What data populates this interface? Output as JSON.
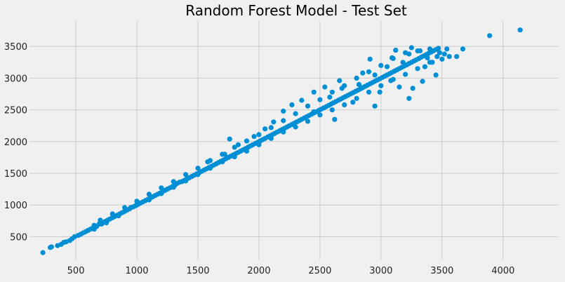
{
  "chart_data": {
    "type": "scatter",
    "title": "Random Forest Model - Test Set",
    "xlabel": "",
    "ylabel": "",
    "xlim": [
      120,
      4450
    ],
    "ylim": [
      140,
      3900
    ],
    "xticks": [
      500,
      1000,
      1500,
      2000,
      2500,
      3000,
      3500,
      4000
    ],
    "yticks": [
      500,
      1000,
      1500,
      2000,
      2500,
      3000,
      3500
    ],
    "grid": true,
    "legend": "none",
    "colors": {
      "points": "#008fd5",
      "background": "#f0f0f0",
      "grid": "#cbcbcb"
    },
    "points": [
      [
        230,
        250
      ],
      [
        290,
        330
      ],
      [
        300,
        340
      ],
      [
        350,
        360
      ],
      [
        380,
        380
      ],
      [
        400,
        410
      ],
      [
        420,
        420
      ],
      [
        450,
        440
      ],
      [
        470,
        470
      ],
      [
        490,
        500
      ],
      [
        520,
        520
      ],
      [
        540,
        540
      ],
      [
        560,
        560
      ],
      [
        580,
        580
      ],
      [
        600,
        600
      ],
      [
        620,
        620
      ],
      [
        640,
        640
      ],
      [
        650,
        680
      ],
      [
        670,
        660
      ],
      [
        690,
        700
      ],
      [
        710,
        700
      ],
      [
        720,
        720
      ],
      [
        740,
        740
      ],
      [
        760,
        760
      ],
      [
        780,
        780
      ],
      [
        800,
        800
      ],
      [
        820,
        820
      ],
      [
        840,
        840
      ],
      [
        860,
        860
      ],
      [
        880,
        880
      ],
      [
        900,
        900
      ],
      [
        920,
        920
      ],
      [
        940,
        940
      ],
      [
        950,
        960
      ],
      [
        970,
        970
      ],
      [
        990,
        990
      ],
      [
        1010,
        1010
      ],
      [
        1030,
        1030
      ],
      [
        1050,
        1050
      ],
      [
        1070,
        1070
      ],
      [
        1090,
        1090
      ],
      [
        1110,
        1110
      ],
      [
        1130,
        1130
      ],
      [
        1150,
        1150
      ],
      [
        1170,
        1170
      ],
      [
        1190,
        1190
      ],
      [
        1210,
        1210
      ],
      [
        1230,
        1230
      ],
      [
        1250,
        1250
      ],
      [
        1270,
        1270
      ],
      [
        1290,
        1290
      ],
      [
        1310,
        1310
      ],
      [
        1330,
        1340
      ],
      [
        1350,
        1360
      ],
      [
        1370,
        1370
      ],
      [
        1390,
        1390
      ],
      [
        1410,
        1410
      ],
      [
        1430,
        1430
      ],
      [
        1450,
        1450
      ],
      [
        1470,
        1470
      ],
      [
        1490,
        1490
      ],
      [
        1510,
        1510
      ],
      [
        1530,
        1530
      ],
      [
        1550,
        1550
      ],
      [
        1570,
        1570
      ],
      [
        1590,
        1590
      ],
      [
        1610,
        1610
      ],
      [
        1630,
        1630
      ],
      [
        1650,
        1650
      ],
      [
        1670,
        1670
      ],
      [
        1690,
        1690
      ],
      [
        1710,
        1710
      ],
      [
        1730,
        1730
      ],
      [
        1750,
        1750
      ],
      [
        1770,
        1770
      ],
      [
        1790,
        1790
      ],
      [
        1810,
        1810
      ],
      [
        1830,
        1830
      ],
      [
        1850,
        1850
      ],
      [
        1870,
        1870
      ],
      [
        1890,
        1890
      ],
      [
        1910,
        1910
      ],
      [
        1930,
        1930
      ],
      [
        1950,
        1950
      ],
      [
        1970,
        1970
      ],
      [
        1990,
        1990
      ],
      [
        2010,
        2010
      ],
      [
        2030,
        2030
      ],
      [
        2050,
        2050
      ],
      [
        2070,
        2070
      ],
      [
        2090,
        2090
      ],
      [
        2110,
        2110
      ],
      [
        2130,
        2130
      ],
      [
        2150,
        2150
      ],
      [
        2170,
        2170
      ],
      [
        2190,
        2190
      ],
      [
        2210,
        2210
      ],
      [
        2230,
        2230
      ],
      [
        2250,
        2250
      ],
      [
        2270,
        2270
      ],
      [
        2290,
        2290
      ],
      [
        2310,
        2310
      ],
      [
        2330,
        2330
      ],
      [
        2350,
        2350
      ],
      [
        2370,
        2370
      ],
      [
        2390,
        2390
      ],
      [
        2410,
        2410
      ],
      [
        2430,
        2430
      ],
      [
        2450,
        2450
      ],
      [
        2470,
        2470
      ],
      [
        2490,
        2490
      ],
      [
        2510,
        2510
      ],
      [
        2530,
        2530
      ],
      [
        2550,
        2550
      ],
      [
        2570,
        2570
      ],
      [
        2590,
        2590
      ],
      [
        2610,
        2610
      ],
      [
        2630,
        2630
      ],
      [
        2650,
        2650
      ],
      [
        2670,
        2670
      ],
      [
        2690,
        2690
      ],
      [
        2710,
        2710
      ],
      [
        2730,
        2730
      ],
      [
        2750,
        2750
      ],
      [
        2770,
        2770
      ],
      [
        2790,
        2790
      ],
      [
        2810,
        2810
      ],
      [
        2830,
        2830
      ],
      [
        2850,
        2850
      ],
      [
        2870,
        2870
      ],
      [
        2890,
        2890
      ],
      [
        2910,
        2910
      ],
      [
        2930,
        2930
      ],
      [
        2950,
        2950
      ],
      [
        2970,
        2970
      ],
      [
        2990,
        2990
      ],
      [
        3010,
        3010
      ],
      [
        3030,
        3030
      ],
      [
        3050,
        3050
      ],
      [
        3070,
        3070
      ],
      [
        3090,
        3090
      ],
      [
        3110,
        3110
      ],
      [
        3130,
        3130
      ],
      [
        3150,
        3150
      ],
      [
        3170,
        3170
      ],
      [
        3190,
        3190
      ],
      [
        3210,
        3210
      ],
      [
        3230,
        3230
      ],
      [
        3250,
        3250
      ],
      [
        3270,
        3270
      ],
      [
        3290,
        3290
      ],
      [
        3310,
        3310
      ],
      [
        3330,
        3330
      ],
      [
        3350,
        3350
      ],
      [
        3370,
        3370
      ],
      [
        3390,
        3390
      ],
      [
        3410,
        3410
      ],
      [
        3430,
        3430
      ],
      [
        3450,
        3450
      ],
      [
        3470,
        3470
      ],
      [
        650,
        620
      ],
      [
        750,
        720
      ],
      [
        850,
        830
      ],
      [
        1000,
        1000
      ],
      [
        1100,
        1080
      ],
      [
        1200,
        1180
      ],
      [
        1300,
        1280
      ],
      [
        1400,
        1380
      ],
      [
        1500,
        1480
      ],
      [
        1600,
        1580
      ],
      [
        1700,
        1680
      ],
      [
        1800,
        1760
      ],
      [
        1900,
        1850
      ],
      [
        2000,
        1950
      ],
      [
        2100,
        2050
      ],
      [
        2200,
        2150
      ],
      [
        2300,
        2230
      ],
      [
        2400,
        2320
      ],
      [
        2500,
        2420
      ],
      [
        2600,
        2500
      ],
      [
        2700,
        2580
      ],
      [
        2800,
        2680
      ],
      [
        2900,
        2780
      ],
      [
        3000,
        2880
      ],
      [
        3100,
        2980
      ],
      [
        3200,
        3060
      ],
      [
        3300,
        3150
      ],
      [
        3400,
        3250
      ],
      [
        700,
        760
      ],
      [
        800,
        860
      ],
      [
        900,
        960
      ],
      [
        1000,
        1060
      ],
      [
        1100,
        1170
      ],
      [
        1200,
        1270
      ],
      [
        1300,
        1370
      ],
      [
        1400,
        1480
      ],
      [
        1500,
        1580
      ],
      [
        1600,
        1700
      ],
      [
        1700,
        1800
      ],
      [
        1800,
        1910
      ],
      [
        1900,
        2010
      ],
      [
        2000,
        2110
      ],
      [
        2100,
        2220
      ],
      [
        2200,
        2330
      ],
      [
        2300,
        2440
      ],
      [
        2400,
        2560
      ],
      [
        2500,
        2660
      ],
      [
        2600,
        2780
      ],
      [
        2700,
        2880
      ],
      [
        2800,
        3000
      ],
      [
        2900,
        3100
      ],
      [
        3000,
        3200
      ],
      [
        3100,
        3310
      ],
      [
        3200,
        3400
      ],
      [
        3300,
        3430
      ],
      [
        3400,
        3460
      ],
      [
        1760,
        2040
      ],
      [
        2120,
        2310
      ],
      [
        2270,
        2580
      ],
      [
        2450,
        2780
      ],
      [
        2660,
        2960
      ],
      [
        2850,
        3080
      ],
      [
        2910,
        3300
      ],
      [
        3090,
        3320
      ],
      [
        3120,
        3440
      ],
      [
        3230,
        3380
      ],
      [
        3250,
        3480
      ],
      [
        3320,
        3430
      ],
      [
        3380,
        3320
      ],
      [
        3460,
        3340
      ],
      [
        3500,
        3300
      ],
      [
        3520,
        3380
      ],
      [
        3560,
        3340
      ],
      [
        3620,
        3340
      ],
      [
        3670,
        3460
      ],
      [
        3890,
        3670
      ],
      [
        4140,
        3760
      ],
      [
        2450,
        2470
      ],
      [
        2620,
        2350
      ],
      [
        2770,
        2620
      ],
      [
        2950,
        2560
      ],
      [
        2990,
        2780
      ],
      [
        3080,
        2960
      ],
      [
        3150,
        2860
      ],
      [
        3230,
        2680
      ],
      [
        3260,
        2840
      ],
      [
        3340,
        2950
      ],
      [
        3450,
        3050
      ],
      [
        3360,
        3180
      ],
      [
        3420,
        3250
      ],
      [
        3480,
        3400
      ],
      [
        3540,
        3460
      ],
      [
        2200,
        2480
      ],
      [
        2350,
        2650
      ],
      [
        2540,
        2860
      ],
      [
        2580,
        2700
      ],
      [
        2680,
        2840
      ],
      [
        2820,
        2900
      ],
      [
        2950,
        3050
      ],
      [
        3050,
        3180
      ],
      [
        3180,
        3250
      ],
      [
        2050,
        2200
      ],
      [
        1960,
        2080
      ],
      [
        1830,
        1950
      ],
      [
        1720,
        1800
      ],
      [
        1580,
        1680
      ]
    ]
  }
}
